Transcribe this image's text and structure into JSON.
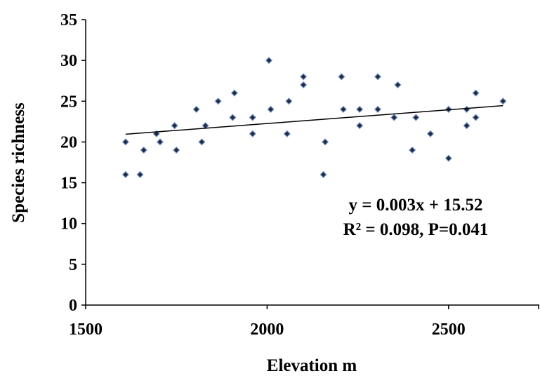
{
  "chart_data": {
    "type": "scatter",
    "xlabel": "Elevation m",
    "ylabel": "Species richness",
    "xlim": [
      1500,
      2750
    ],
    "ylim": [
      0,
      35
    ],
    "xticks": [
      1500,
      2000,
      2500
    ],
    "yticks": [
      0,
      5,
      10,
      15,
      20,
      25,
      30,
      35
    ],
    "grid": false,
    "legend": "none",
    "marker_color": "#1f2a44",
    "marker_edge_color": "#6f8fbf",
    "trendline_color": "#000000",
    "points": [
      {
        "x": 1610,
        "y": 16
      },
      {
        "x": 1610,
        "y": 20
      },
      {
        "x": 1650,
        "y": 16
      },
      {
        "x": 1660,
        "y": 19
      },
      {
        "x": 1695,
        "y": 21
      },
      {
        "x": 1705,
        "y": 20
      },
      {
        "x": 1745,
        "y": 22
      },
      {
        "x": 1750,
        "y": 19
      },
      {
        "x": 1805,
        "y": 24
      },
      {
        "x": 1820,
        "y": 20
      },
      {
        "x": 1830,
        "y": 22
      },
      {
        "x": 1865,
        "y": 25
      },
      {
        "x": 1905,
        "y": 23
      },
      {
        "x": 1910,
        "y": 26
      },
      {
        "x": 1960,
        "y": 23
      },
      {
        "x": 1960,
        "y": 21
      },
      {
        "x": 2005,
        "y": 30
      },
      {
        "x": 2010,
        "y": 24
      },
      {
        "x": 2055,
        "y": 21
      },
      {
        "x": 2060,
        "y": 25
      },
      {
        "x": 2100,
        "y": 28
      },
      {
        "x": 2100,
        "y": 27
      },
      {
        "x": 2155,
        "y": 16
      },
      {
        "x": 2160,
        "y": 20
      },
      {
        "x": 2205,
        "y": 28
      },
      {
        "x": 2210,
        "y": 24
      },
      {
        "x": 2255,
        "y": 22
      },
      {
        "x": 2255,
        "y": 24
      },
      {
        "x": 2305,
        "y": 28
      },
      {
        "x": 2305,
        "y": 24
      },
      {
        "x": 2350,
        "y": 23
      },
      {
        "x": 2360,
        "y": 27
      },
      {
        "x": 2400,
        "y": 19
      },
      {
        "x": 2410,
        "y": 23
      },
      {
        "x": 2450,
        "y": 21
      },
      {
        "x": 2500,
        "y": 24
      },
      {
        "x": 2500,
        "y": 18
      },
      {
        "x": 2550,
        "y": 24
      },
      {
        "x": 2550,
        "y": 22
      },
      {
        "x": 2575,
        "y": 26
      },
      {
        "x": 2575,
        "y": 23
      },
      {
        "x": 2650,
        "y": 25
      }
    ],
    "trendline": {
      "x": [
        1610,
        2650
      ],
      "y": [
        20.95,
        24.45
      ]
    },
    "annotations": [
      "y = 0.003x + 15.52",
      "R² = 0.098, P=0.041"
    ]
  }
}
